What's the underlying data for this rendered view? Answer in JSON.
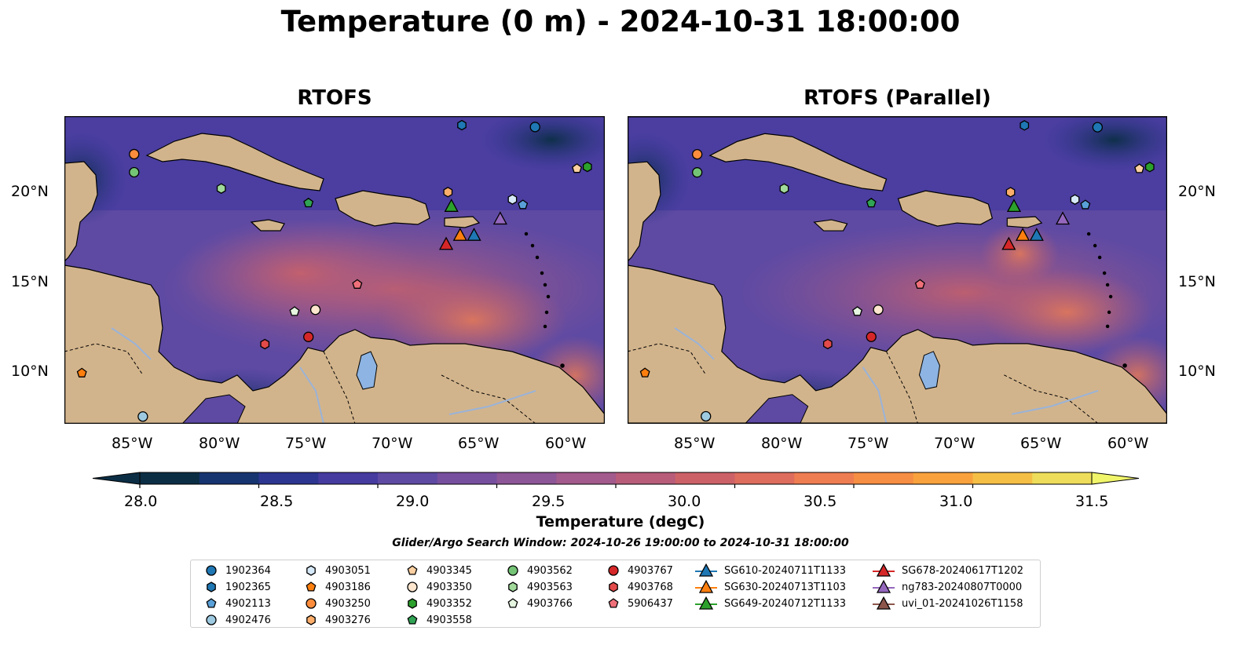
{
  "title": "Temperature (0 m) - 2024-10-31 18:00:00",
  "panels": [
    {
      "title": "RTOFS"
    },
    {
      "title": "RTOFS (Parallel)"
    }
  ],
  "axes": {
    "lon_ticks": [
      "85°W",
      "80°W",
      "75°W",
      "70°W",
      "65°W",
      "60°W"
    ],
    "lat_ticks": [
      "20°N",
      "15°N",
      "10°N"
    ]
  },
  "colorbar": {
    "label": "Temperature (degC)",
    "ticks": [
      "28.0",
      "28.5",
      "29.0",
      "29.5",
      "30.0",
      "30.5",
      "31.0",
      "31.5"
    ],
    "range": [
      28.0,
      31.5
    ],
    "colors": [
      "#0b2e45",
      "#163470",
      "#2c3590",
      "#463b9f",
      "#5e4aa3",
      "#774f9f",
      "#8d5697",
      "#a35a8c",
      "#b85c7a",
      "#cc6268",
      "#de6d5e",
      "#ee7d52",
      "#f68e43",
      "#f9a23d",
      "#f5bf46",
      "#eddd5a"
    ],
    "land_color": "#d2b48c"
  },
  "search_window": "Glider/Argo Search Window: 2024-10-26 19:00:00 to 2024-10-31 18:00:00",
  "legend": [
    {
      "label": "1902364",
      "marker": "circle",
      "color": "#1f77b4"
    },
    {
      "label": "1902365",
      "marker": "hexagon",
      "color": "#1f77b4"
    },
    {
      "label": "4902113",
      "marker": "pentagon",
      "color": "#5aa0d8"
    },
    {
      "label": "4902476",
      "marker": "circle",
      "color": "#9ecae1"
    },
    {
      "label": "4903051",
      "marker": "hexagon",
      "color": "#d6e9f8"
    },
    {
      "label": "4903186",
      "marker": "pentagon",
      "color": "#ff7f0e"
    },
    {
      "label": "4903250",
      "marker": "circle",
      "color": "#fd8d3c"
    },
    {
      "label": "4903276",
      "marker": "hexagon",
      "color": "#fdae6b"
    },
    {
      "label": "4903345",
      "marker": "pentagon",
      "color": "#fdd0a2"
    },
    {
      "label": "4903350",
      "marker": "circle",
      "color": "#fee6ce"
    },
    {
      "label": "4903352",
      "marker": "hexagon",
      "color": "#2ca02c"
    },
    {
      "label": "4903558",
      "marker": "pentagon",
      "color": "#31a354"
    },
    {
      "label": "4903562",
      "marker": "circle",
      "color": "#74c476"
    },
    {
      "label": "4903563",
      "marker": "hexagon",
      "color": "#a1d99b"
    },
    {
      "label": "4903766",
      "marker": "pentagon",
      "color": "#e5f5e0"
    },
    {
      "label": "4903767",
      "marker": "circle",
      "color": "#d62728"
    },
    {
      "label": "4903768",
      "marker": "hexagon",
      "color": "#e34a4a"
    },
    {
      "label": "5906437",
      "marker": "pentagon",
      "color": "#f0707a"
    },
    {
      "label": "SG610-20240711T1133",
      "marker": "triangle-line",
      "color": "#1f77b4"
    },
    {
      "label": "SG630-20240713T1103",
      "marker": "triangle-line",
      "color": "#ff7f0e"
    },
    {
      "label": "SG649-20240712T1133",
      "marker": "triangle-line",
      "color": "#2ca02c"
    },
    {
      "label": "SG678-20240617T1202",
      "marker": "triangle-line",
      "color": "#d62728"
    },
    {
      "label": "ng783-20240807T0000",
      "marker": "triangle-line",
      "color": "#9467bd"
    },
    {
      "label": "uvi_01-20241026T1158",
      "marker": "triangle-line",
      "color": "#8c564b"
    }
  ],
  "observations": [
    {
      "id": "1902364",
      "lon": -62.0,
      "lat": 23.4
    },
    {
      "id": "1902365",
      "lon": -66.2,
      "lat": 23.5
    },
    {
      "id": "4902113",
      "lon": -62.7,
      "lat": 19.1
    },
    {
      "id": "4902476",
      "lon": -84.5,
      "lat": 7.4
    },
    {
      "id": "4903051",
      "lon": -63.3,
      "lat": 19.4
    },
    {
      "id": "4903186",
      "lon": -88.0,
      "lat": 9.8
    },
    {
      "id": "4903250",
      "lon": -85.0,
      "lat": 21.9
    },
    {
      "id": "4903276",
      "lon": -67.0,
      "lat": 19.8
    },
    {
      "id": "4903345",
      "lon": -59.6,
      "lat": 21.1
    },
    {
      "id": "4903350",
      "lon": -74.6,
      "lat": 13.3
    },
    {
      "id": "4903352",
      "lon": -59.0,
      "lat": 21.2
    },
    {
      "id": "4903558",
      "lon": -75.0,
      "lat": 19.2
    },
    {
      "id": "4903562",
      "lon": -85.0,
      "lat": 20.9
    },
    {
      "id": "4903563",
      "lon": -80.0,
      "lat": 20.0
    },
    {
      "id": "4903766",
      "lon": -75.8,
      "lat": 13.2
    },
    {
      "id": "4903767",
      "lon": -75.0,
      "lat": 11.8
    },
    {
      "id": "4903768",
      "lon": -77.5,
      "lat": 11.4
    },
    {
      "id": "5906437",
      "lon": -72.2,
      "lat": 14.7
    },
    {
      "id": "SG610-20240711T1133",
      "lon": -65.5,
      "lat": 17.4
    },
    {
      "id": "SG630-20240713T1103",
      "lon": -66.3,
      "lat": 17.4
    },
    {
      "id": "SG649-20240712T1133",
      "lon": -66.8,
      "lat": 19.0
    },
    {
      "id": "SG678-20240617T1202",
      "lon": -67.1,
      "lat": 16.9
    },
    {
      "id": "ng783-20240807T0000",
      "lon": -64.0,
      "lat": 18.3
    }
  ]
}
